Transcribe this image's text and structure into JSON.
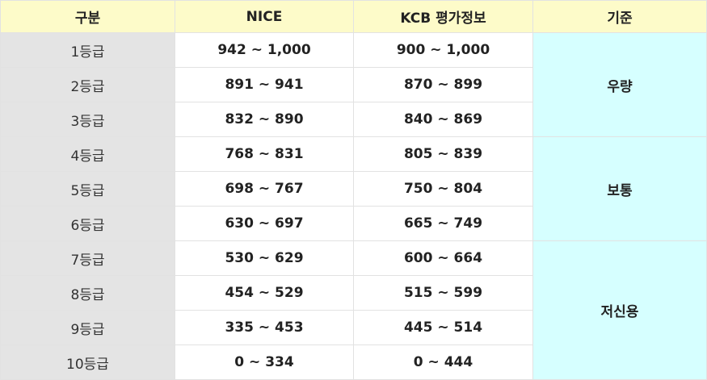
{
  "headers": [
    "구분",
    "NICE",
    "KCB 평가정보",
    "기준"
  ],
  "rows": [
    {
      "grade": "1등급",
      "nice": "942 ~ 1,000",
      "kcb": "900 ~ 1,000"
    },
    {
      "grade": "2등급",
      "nice": "891 ~ 941",
      "kcb": "870 ~ 899"
    },
    {
      "grade": "3등급",
      "nice": "832 ~ 890",
      "kcb": "840 ~ 869"
    },
    {
      "grade": "4등급",
      "nice": "768 ~ 831",
      "kcb": "805 ~ 839"
    },
    {
      "grade": "5등급",
      "nice": "698 ~ 767",
      "kcb": "750 ~ 804"
    },
    {
      "grade": "6등급",
      "nice": "630 ~ 697",
      "kcb": "665 ~ 749"
    },
    {
      "grade": "7등급",
      "nice": "530 ~ 629",
      "kcb": "600 ~ 664"
    },
    {
      "grade": "8등급",
      "nice": "454 ~ 529",
      "kcb": "515 ~ 599"
    },
    {
      "grade": "9등급",
      "nice": "335 ~ 453",
      "kcb": "445 ~ 514"
    },
    {
      "grade": "10등급",
      "nice": "0 ~ 334",
      "kcb": "0 ~ 444"
    }
  ],
  "basis": [
    "우량",
    "보통",
    "저신용"
  ],
  "colors": {
    "header_bg": "#fdfbc9",
    "grade_bg": "#e4e4e4",
    "basis_bg": "#d6ffff"
  }
}
